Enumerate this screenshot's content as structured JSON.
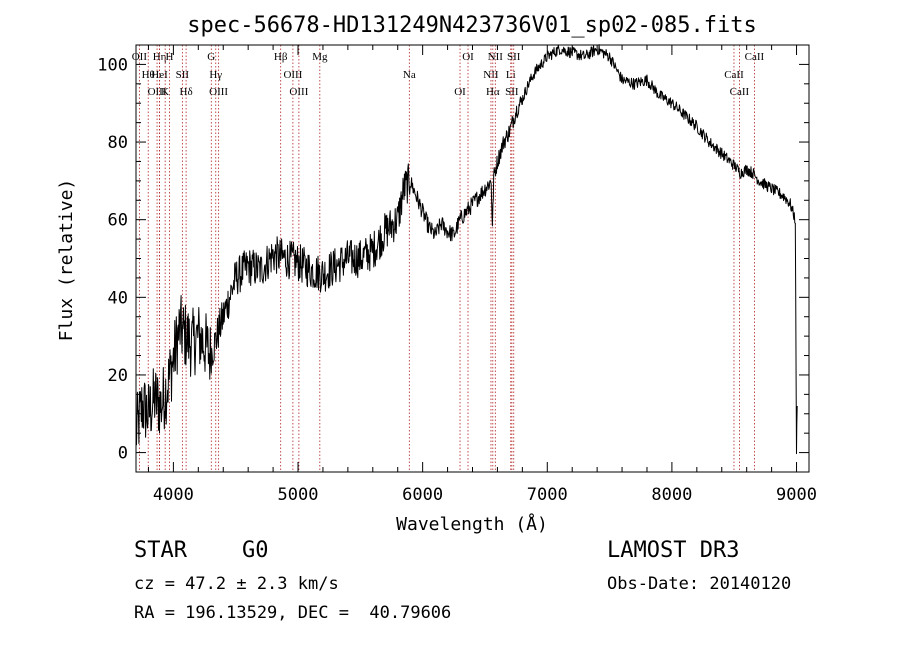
{
  "chart_data": {
    "type": "line",
    "title": "spec-56678-HD131249N423736V01_sp02-085.fits",
    "xlabel": "Wavelength (Å)",
    "ylabel": "Flux (relative)",
    "xlim": [
      3700,
      9100
    ],
    "ylim": [
      -5,
      105
    ],
    "x_ticks": [
      4000,
      5000,
      6000,
      7000,
      8000,
      9000
    ],
    "y_ticks": [
      0,
      20,
      40,
      60,
      80,
      100
    ],
    "x_tick_labels": [
      "4000",
      "5000",
      "6000",
      "7000",
      "8000",
      "9000"
    ],
    "y_tick_labels": [
      "0",
      "20",
      "40",
      "60",
      "80",
      "100"
    ],
    "grid": false,
    "series": [
      {
        "name": "flux",
        "x": [
          3700,
          3750,
          3800,
          3850,
          3900,
          3950,
          4000,
          4050,
          4100,
          4150,
          4200,
          4250,
          4300,
          4350,
          4400,
          4450,
          4500,
          4600,
          4700,
          4800,
          4900,
          5000,
          5100,
          5200,
          5300,
          5400,
          5500,
          5600,
          5700,
          5800,
          5850,
          5900,
          5950,
          6000,
          6050,
          6100,
          6150,
          6200,
          6250,
          6300,
          6350,
          6400,
          6450,
          6500,
          6550,
          6560,
          6570,
          6600,
          6650,
          6700,
          6750,
          6800,
          6850,
          6900,
          6950,
          7000,
          7050,
          7100,
          7200,
          7300,
          7400,
          7500,
          7600,
          7700,
          7800,
          7900,
          8000,
          8100,
          8200,
          8300,
          8400,
          8500,
          8550,
          8600,
          8650,
          8700,
          8800,
          8900,
          8950,
          8990,
          9000,
          9005
        ],
        "y": [
          5,
          12,
          10,
          14,
          12,
          17,
          24,
          32,
          30,
          28,
          30,
          28,
          25,
          30,
          35,
          40,
          45,
          48,
          47,
          51,
          50,
          49,
          47,
          46,
          48,
          50,
          50,
          52,
          57,
          60,
          68,
          70,
          66,
          62,
          58,
          56,
          59,
          57,
          56,
          60,
          62,
          64,
          66,
          68,
          70,
          58,
          71,
          75,
          80,
          83,
          88,
          91,
          95,
          98,
          100,
          102,
          103,
          104,
          103,
          102,
          104,
          102,
          96,
          95,
          96,
          92,
          90,
          87,
          84,
          80,
          77,
          74,
          72,
          73,
          72,
          70,
          68,
          66,
          64,
          60,
          0,
          12
        ]
      }
    ],
    "lines": [
      {
        "name": "OII",
        "wavelength": 3727
      },
      {
        "name": "Hθ",
        "wavelength": 3798
      },
      {
        "name": "OIII",
        "wavelength": 3869
      },
      {
        "name": "Hη",
        "wavelength": 3889
      },
      {
        "name": "HeI",
        "wavelength": 3889
      },
      {
        "name": "K",
        "wavelength": 3934
      },
      {
        "name": "H",
        "wavelength": 3969
      },
      {
        "name": "SII",
        "wavelength": 4072
      },
      {
        "name": "Hδ",
        "wavelength": 4102
      },
      {
        "name": "G",
        "wavelength": 4304
      },
      {
        "name": "Hγ",
        "wavelength": 4340
      },
      {
        "name": "OIII",
        "wavelength": 4363
      },
      {
        "name": "Hβ",
        "wavelength": 4861
      },
      {
        "name": "OIII",
        "wavelength": 4959
      },
      {
        "name": "OIII",
        "wavelength": 5007
      },
      {
        "name": "Mg",
        "wavelength": 5175
      },
      {
        "name": "Na",
        "wavelength": 5893
      },
      {
        "name": "OI",
        "wavelength": 6300
      },
      {
        "name": "OI",
        "wavelength": 6364
      },
      {
        "name": "NII",
        "wavelength": 6548
      },
      {
        "name": "Hα",
        "wavelength": 6563
      },
      {
        "name": "NII",
        "wavelength": 6583
      },
      {
        "name": "Li",
        "wavelength": 6707
      },
      {
        "name": "SII",
        "wavelength": 6716
      },
      {
        "name": "SII",
        "wavelength": 6731
      },
      {
        "name": "CaII",
        "wavelength": 8498
      },
      {
        "name": "CaII",
        "wavelength": 8542
      },
      {
        "name": "CaII",
        "wavelength": 8662
      }
    ]
  },
  "footer": {
    "class_label": "STAR",
    "subclass_label": "G0",
    "survey": "LAMOST DR3",
    "cz_text": "cz = 47.2 ± 2.3 km/s",
    "obs_date": "Obs-Date: 20140120",
    "coords": "RA = 196.13529, DEC =  40.79606"
  },
  "colors": {
    "line_marker": "#b22222",
    "spectrum": "#000000",
    "background": "#ffffff"
  }
}
